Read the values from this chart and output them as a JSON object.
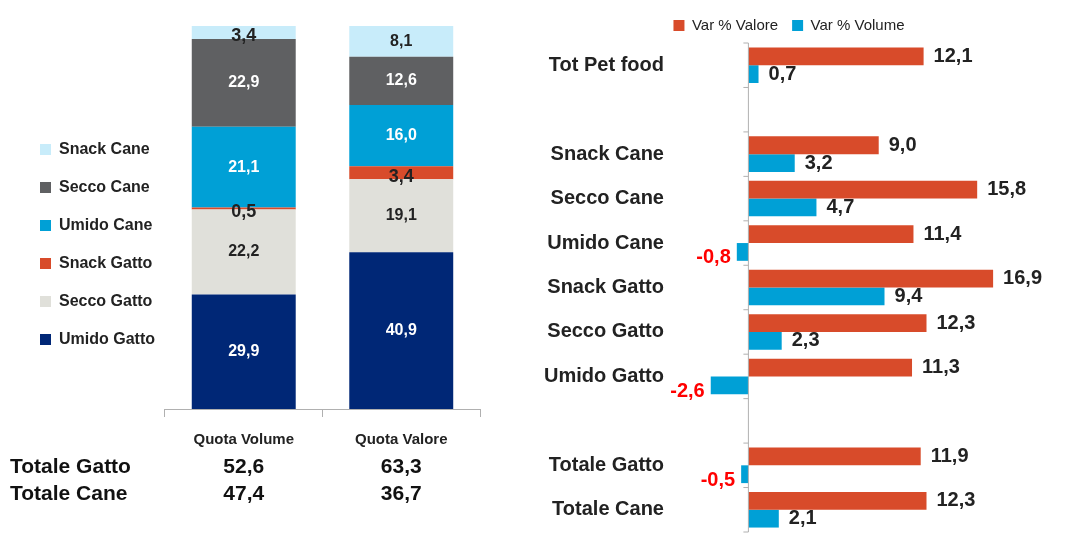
{
  "chart_data": [
    {
      "type": "bar",
      "stacked": true,
      "categories": [
        "Quota Volume",
        "Quota Valore"
      ],
      "ylim": [
        0,
        100
      ],
      "tick_labels": "x",
      "legend": "left",
      "series": [
        {
          "name": "Umido Gatto",
          "color": "#002776",
          "values": [
            29.9,
            40.9
          ],
          "value_labels": [
            "29,9",
            "40,9"
          ]
        },
        {
          "name": "Secco Gatto",
          "color": "#e0e0da",
          "values": [
            22.2,
            19.1
          ],
          "value_labels": [
            "22,2",
            "19,1"
          ]
        },
        {
          "name": "Snack Gatto",
          "color": "#d84b2a",
          "values": [
            0.5,
            3.4
          ],
          "value_labels": [
            "0,5",
            "3,4"
          ]
        },
        {
          "name": "Umido Cane",
          "color": "#00a0d6",
          "values": [
            21.1,
            16.0
          ],
          "value_labels": [
            "21,1",
            "16,0"
          ]
        },
        {
          "name": "Secco Cane",
          "color": "#5f6062",
          "values": [
            22.9,
            12.6
          ],
          "value_labels": [
            "22,9",
            "12,6"
          ]
        },
        {
          "name": "Snack Cane",
          "color": "#c8ecfa",
          "values": [
            3.4,
            8.1
          ],
          "value_labels": [
            "3,4",
            "8,1"
          ]
        }
      ],
      "annotations": [
        "Totale Gatto",
        "52,6",
        "63,3",
        "Totale Cane",
        "47,4",
        "36,7"
      ]
    },
    {
      "type": "bar",
      "orientation": "horizontal",
      "categories": [
        "Tot Pet food",
        null,
        "Snack Cane",
        "Secco Cane",
        "Umido Cane",
        "Snack Gatto",
        "Secco Gatto",
        "Umido Gatto",
        null,
        "Totale Gatto",
        "Totale Cane"
      ],
      "tick_labels": "y",
      "legend": "top",
      "series": [
        {
          "name": "Var % Valore",
          "color": "#d84b2a",
          "values": [
            12.1,
            null,
            9.0,
            15.8,
            11.4,
            16.9,
            12.3,
            11.3,
            null,
            11.9,
            12.3
          ],
          "value_labels": [
            "12,1",
            null,
            "9,0",
            "15,8",
            "11,4",
            "16,9",
            "12,3",
            "11,3",
            null,
            "11,9",
            "12,3"
          ]
        },
        {
          "name": "Var % Volume",
          "color": "#00a0d6",
          "values": [
            0.7,
            null,
            3.2,
            4.7,
            -0.8,
            9.4,
            2.3,
            -2.6,
            null,
            -0.5,
            2.1
          ],
          "value_labels": [
            "0,7",
            null,
            "3,2",
            "4,7",
            "-0,8",
            "9,4",
            "2,3",
            "-2,6",
            null,
            "-0,5",
            "2,1"
          ]
        }
      ]
    }
  ]
}
